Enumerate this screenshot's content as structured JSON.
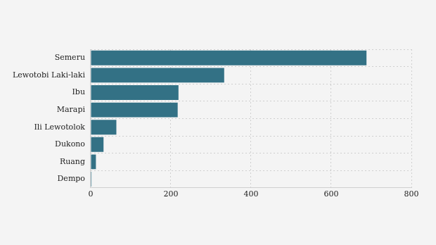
{
  "chart_data": {
    "type": "bar",
    "orientation": "horizontal",
    "categories": [
      "Semeru",
      "Lewotobi Laki-laki",
      "Ibu",
      "Marapi",
      "Ili Lewotolok",
      "Dukono",
      "Ruang",
      "Dempo"
    ],
    "values": [
      688,
      333,
      219,
      217,
      64,
      32,
      13,
      2
    ],
    "color": "#337185",
    "xlim": [
      0,
      800
    ],
    "xticks": [
      0,
      200,
      400,
      600,
      800
    ],
    "grid": true
  }
}
